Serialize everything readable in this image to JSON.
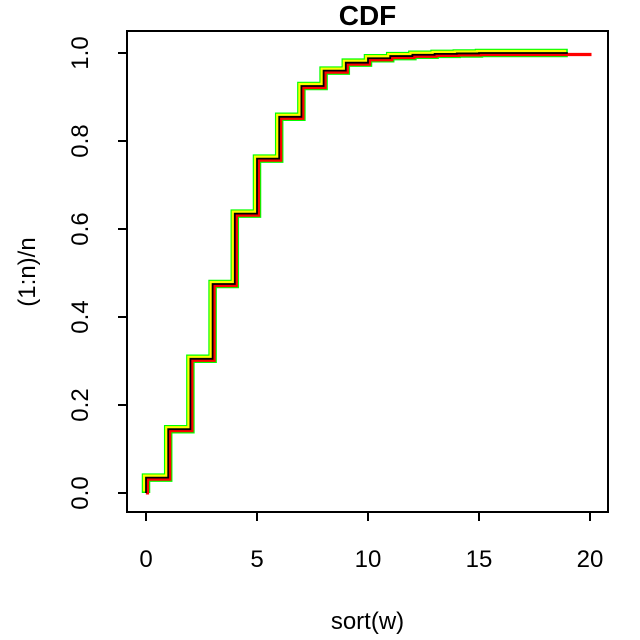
{
  "chart": {
    "title": "CDF",
    "xlabel": "sort(w)",
    "ylabel": "(1:n)/n"
  },
  "chart_data": {
    "type": "line",
    "subtype": "ecdf-step",
    "title": "CDF",
    "xlabel": "sort(w)",
    "ylabel": "(1:n)/n",
    "xlim": [
      0,
      20
    ],
    "ylim": [
      0.0,
      1.0
    ],
    "grid": false,
    "legend": "none",
    "x_ticks": [
      0,
      5,
      10,
      15,
      20
    ],
    "x_tick_labels": [
      "0",
      "5",
      "10",
      "15",
      "20"
    ],
    "y_ticks": [
      0.0,
      0.2,
      0.4,
      0.6,
      0.8,
      1.0
    ],
    "y_tick_labels": [
      "0.0",
      "0.2",
      "0.4",
      "0.6",
      "0.8",
      "1.0"
    ],
    "axis_color": "#000000",
    "background_color": "#ffffff",
    "series": [
      {
        "name": "green-ecdf",
        "color": "#00FF00",
        "x": [
          0,
          1,
          2,
          3,
          4,
          5,
          6,
          7,
          8,
          9,
          10,
          11,
          12,
          13,
          14,
          15,
          16,
          17,
          18,
          19
        ],
        "y": [
          0.035,
          0.145,
          0.305,
          0.475,
          0.635,
          0.76,
          0.855,
          0.925,
          0.96,
          0.978,
          0.988,
          0.993,
          0.996,
          0.998,
          0.999,
          1.0,
          1.0,
          1.0,
          1.0,
          1.0
        ]
      },
      {
        "name": "yellow-ecdf",
        "color": "#FFFF00",
        "x": [
          0,
          1,
          2,
          3,
          4,
          5,
          6,
          7,
          8,
          9,
          10,
          11,
          12,
          13,
          14,
          15,
          16,
          17,
          18,
          19
        ],
        "y": [
          0.035,
          0.145,
          0.305,
          0.475,
          0.635,
          0.76,
          0.855,
          0.925,
          0.96,
          0.978,
          0.988,
          0.993,
          0.996,
          0.998,
          0.999,
          1.0,
          1.0,
          1.0,
          1.0,
          1.0
        ]
      },
      {
        "name": "red-ecdf",
        "color": "#FF0000",
        "x": [
          0,
          1,
          2,
          3,
          4,
          5,
          6,
          7,
          8,
          9,
          10,
          11,
          12,
          13,
          14,
          15,
          16,
          17,
          18,
          19,
          20
        ],
        "y": [
          0.035,
          0.145,
          0.305,
          0.475,
          0.635,
          0.76,
          0.855,
          0.925,
          0.96,
          0.978,
          0.988,
          0.993,
          0.996,
          0.998,
          0.999,
          1.0,
          1.0,
          1.0,
          1.0,
          1.0,
          1.0
        ]
      },
      {
        "name": "black-ecdf",
        "color": "#000000",
        "x": [
          0,
          1,
          2,
          3,
          4,
          5,
          6,
          7,
          8,
          9,
          10,
          11,
          12,
          13,
          14,
          15,
          16,
          17,
          18,
          19
        ],
        "y": [
          0.035,
          0.145,
          0.305,
          0.475,
          0.635,
          0.76,
          0.855,
          0.925,
          0.96,
          0.978,
          0.988,
          0.993,
          0.996,
          0.998,
          0.999,
          1.0,
          1.0,
          1.0,
          1.0,
          1.0
        ]
      }
    ]
  }
}
